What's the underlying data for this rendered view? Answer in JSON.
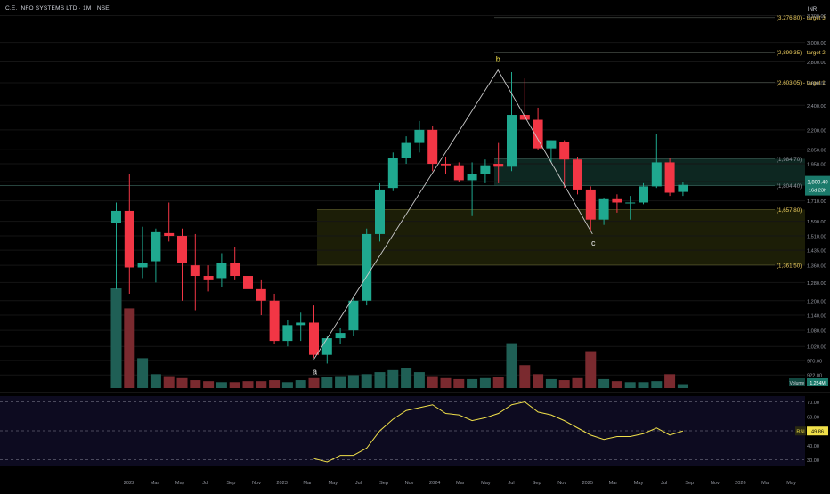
{
  "header": {
    "title": "C.E. INFO SYSTEMS LTD · 1M · NSE"
  },
  "currency_label": "INR",
  "colors": {
    "background": "#000000",
    "up": "#1fa88f",
    "down": "#f23645",
    "grid": "#151515",
    "axis_text": "#9598a1",
    "target_text": "#f0d060",
    "wave_line": "#c9c9c9",
    "rsi_line": "#f0e04a",
    "rsi_panel": "#0d0b20",
    "upper_zone": "#0d2721",
    "lower_zone": "#1c1e07"
  },
  "price_axis": {
    "ticks": [
      "3,300.00",
      "3,000.00",
      "2,800.00",
      "2,600.00",
      "2,400.00",
      "2,200.00",
      "2,050.00",
      "1,950.00",
      "1,830.00",
      "1,710.00",
      "1,590.00",
      "1,510.00",
      "1,435.00",
      "1,360.00",
      "1,280.00",
      "1,200.00",
      "1,140.00",
      "1,080.00",
      "1,020.00",
      "970.00",
      "922.00"
    ]
  },
  "levels": [
    {
      "label": "(3,276.80) - target 3",
      "value": 3276.8,
      "kind": "target"
    },
    {
      "label": "(2,899.35) - target 2",
      "value": 2899.35,
      "kind": "target"
    },
    {
      "label": "(2,603.05) - target 1",
      "value": 2603.05,
      "kind": "target"
    },
    {
      "label": "(1,984.70)",
      "value": 1984.7,
      "kind": "zone"
    },
    {
      "label": "(1,804.40)",
      "value": 1804.4,
      "kind": "zone"
    },
    {
      "label": "(1,657.80)",
      "value": 1657.8,
      "kind": "yellow"
    },
    {
      "label": "(1,361.50)",
      "value": 1361.5,
      "kind": "yellow"
    }
  ],
  "last_price": {
    "price": "1,809.40",
    "countdown": "16d 23h"
  },
  "volume_label": "Volume",
  "volume_value": "1.254M",
  "rsi": {
    "name": "RSI",
    "value_text": "49.86",
    "ticks": [
      "70.00",
      "60.00",
      "50.00",
      "40.00",
      "30.00"
    ],
    "ylim": [
      26,
      74
    ]
  },
  "wave_labels": [
    "a",
    "b",
    "c"
  ],
  "time_axis": [
    "2022",
    "Mar",
    "May",
    "Jul",
    "Sep",
    "Nov",
    "2023",
    "Mar",
    "May",
    "Jul",
    "Sep",
    "Nov",
    "2024",
    "Mar",
    "May",
    "Jul",
    "Sep",
    "Nov",
    "2025",
    "Mar",
    "May",
    "Jul",
    "Sep",
    "Nov",
    "2026",
    "Mar",
    "May"
  ],
  "chart_data": {
    "type": "candlestick",
    "title": "C.E. INFO SYSTEMS LTD · 1M · NSE",
    "interval": "1M",
    "y_scale": "log",
    "ylim": [
      880,
      3400
    ],
    "categories": [
      "Dec 2021",
      "Jan 2022",
      "Feb 2022",
      "Mar 2022",
      "Apr 2022",
      "May 2022",
      "Jun 2022",
      "Jul 2022",
      "Aug 2022",
      "Sep 2022",
      "Oct 2022",
      "Nov 2022",
      "Dec 2022",
      "Jan 2023",
      "Feb 2023",
      "Mar 2023",
      "Apr 2023",
      "May 2023",
      "Jun 2023",
      "Jul 2023",
      "Aug 2023",
      "Sep 2023",
      "Oct 2023",
      "Nov 2023",
      "Dec 2023",
      "Jan 2024",
      "Feb 2024",
      "Mar 2024",
      "Apr 2024",
      "May 2024",
      "Jun 2024",
      "Jul 2024",
      "Aug 2024",
      "Sep 2024",
      "Oct 2024",
      "Nov 2024",
      "Dec 2024",
      "Jan 2025",
      "Feb 2025",
      "Mar 2025",
      "Apr 2025",
      "May 2025",
      "Jun 2025",
      "Jul 2025"
    ],
    "ohlc": [
      [
        1580,
        1700,
        1250,
        1650
      ],
      [
        1650,
        1880,
        1230,
        1350
      ],
      [
        1350,
        1560,
        1300,
        1370
      ],
      [
        1380,
        1550,
        1280,
        1530
      ],
      [
        1525,
        1700,
        1480,
        1510
      ],
      [
        1510,
        1550,
        1200,
        1370
      ],
      [
        1360,
        1520,
        1160,
        1310
      ],
      [
        1310,
        1360,
        1240,
        1290
      ],
      [
        1300,
        1420,
        1260,
        1370
      ],
      [
        1370,
        1450,
        1290,
        1310
      ],
      [
        1310,
        1390,
        1240,
        1250
      ],
      [
        1250,
        1290,
        1140,
        1200
      ],
      [
        1200,
        1230,
        1030,
        1040
      ],
      [
        1040,
        1120,
        1020,
        1100
      ],
      [
        1100,
        1150,
        1040,
        1110
      ],
      [
        1110,
        1180,
        980,
        990
      ],
      [
        990,
        1060,
        960,
        1050
      ],
      [
        1050,
        1090,
        1030,
        1070
      ],
      [
        1080,
        1210,
        1060,
        1200
      ],
      [
        1200,
        1550,
        1180,
        1520
      ],
      [
        1520,
        1820,
        1480,
        1780
      ],
      [
        1790,
        2030,
        1770,
        1990
      ],
      [
        1990,
        2150,
        1950,
        2100
      ],
      [
        2100,
        2270,
        2030,
        2200
      ],
      [
        2200,
        2230,
        1900,
        1950
      ],
      [
        1950,
        2000,
        1880,
        1940
      ],
      [
        1940,
        1960,
        1830,
        1840
      ],
      [
        1840,
        1960,
        1620,
        1880
      ],
      [
        1880,
        1980,
        1820,
        1940
      ],
      [
        1950,
        2100,
        1820,
        1930
      ],
      [
        1930,
        2700,
        1900,
        2320
      ],
      [
        2320,
        2640,
        2280,
        2280
      ],
      [
        2280,
        2380,
        2050,
        2060
      ],
      [
        2060,
        2120,
        1960,
        2120
      ],
      [
        2110,
        2120,
        1790,
        1980
      ],
      [
        1980,
        2000,
        1750,
        1780
      ],
      [
        1780,
        1800,
        1540,
        1600
      ],
      [
        1600,
        1730,
        1570,
        1720
      ],
      [
        1720,
        1750,
        1640,
        1700
      ],
      [
        1700,
        1740,
        1600,
        1700
      ],
      [
        1700,
        1820,
        1690,
        1800
      ],
      [
        1800,
        2170,
        1790,
        1960
      ],
      [
        1960,
        1990,
        1740,
        1760
      ],
      [
        1765,
        1830,
        1740,
        1809.4
      ]
    ],
    "volume": [
      100,
      80,
      30,
      14,
      12,
      10,
      8,
      7,
      6,
      6,
      7,
      7,
      8,
      6,
      8,
      10,
      11,
      12,
      13,
      14,
      16,
      18,
      20,
      16,
      12,
      10,
      9,
      9,
      10,
      11,
      45,
      23,
      14,
      9,
      8,
      10,
      37,
      9,
      7,
      6,
      6,
      7,
      14,
      4
    ],
    "rsi": [
      null,
      null,
      null,
      null,
      null,
      null,
      null,
      null,
      null,
      null,
      null,
      null,
      null,
      null,
      null,
      30.8,
      28.5,
      33,
      33,
      38,
      50,
      58,
      64,
      66,
      68,
      62,
      61,
      57,
      59,
      62,
      68,
      70,
      63,
      61,
      57,
      52,
      47,
      44,
      46,
      46,
      48,
      52,
      47,
      49.86
    ]
  }
}
